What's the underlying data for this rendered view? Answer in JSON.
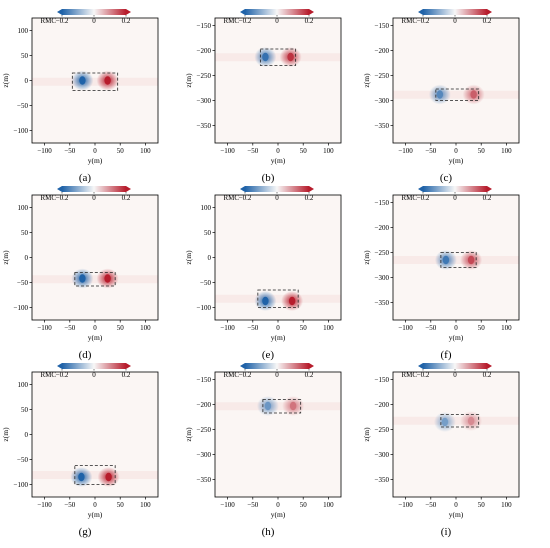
{
  "figure": {
    "colorbar": {
      "label": "RMC",
      "ticks": [
        -0.2,
        0,
        0.2
      ],
      "tick_labels": [
        "−0.2",
        "0",
        "0.2"
      ],
      "colormap": "RdBu_r",
      "extend": "both",
      "neg_color": "#1f62a8",
      "mid_color": "#f7f7f7",
      "pos_color": "#b71c2c"
    }
  },
  "chart_data": [
    {
      "type": "heatmap",
      "caption": "(a)",
      "xlabel": "y(m)",
      "ylabel": "z(m)",
      "xlim": [
        -125,
        125
      ],
      "ylim": [
        -125,
        125
      ],
      "xticks": [
        -100,
        -50,
        0,
        50,
        100
      ],
      "yticks": [
        100,
        50,
        0,
        -50,
        -100
      ],
      "box": {
        "y": [
          -45,
          45
        ],
        "z": [
          -20,
          15
        ]
      },
      "extrema": [
        {
          "y": -25,
          "z": 0,
          "value": -0.2
        },
        {
          "y": 25,
          "z": 0,
          "value": 0.2
        }
      ]
    },
    {
      "type": "heatmap",
      "caption": "(b)",
      "xlabel": "y(m)",
      "ylabel": "z(m)",
      "xlim": [
        -125,
        125
      ],
      "ylim": [
        -385,
        -135
      ],
      "xticks": [
        -100,
        -50,
        0,
        50,
        100
      ],
      "yticks": [
        -150,
        -200,
        -250,
        -300,
        -350
      ],
      "box": {
        "y": [
          -35,
          35
        ],
        "z": [
          -230,
          -197
        ]
      },
      "extrema": [
        {
          "y": -25,
          "z": -213,
          "value": -0.18
        },
        {
          "y": 25,
          "z": -213,
          "value": 0.18
        }
      ]
    },
    {
      "type": "heatmap",
      "caption": "(c)",
      "xlabel": "y(m)",
      "ylabel": "z(m)",
      "xlim": [
        -125,
        125
      ],
      "ylim": [
        -385,
        -135
      ],
      "xticks": [
        -100,
        -50,
        0,
        50,
        100
      ],
      "yticks": [
        -150,
        -200,
        -250,
        -300,
        -350
      ],
      "box": {
        "y": [
          -40,
          45
        ],
        "z": [
          -300,
          -277
        ]
      },
      "extrema": [
        {
          "y": -32,
          "z": -288,
          "value": -0.15
        },
        {
          "y": 35,
          "z": -288,
          "value": 0.14
        }
      ]
    },
    {
      "type": "heatmap",
      "caption": "(d)",
      "xlabel": "y(m)",
      "ylabel": "z(m)",
      "xlim": [
        -125,
        125
      ],
      "ylim": [
        -125,
        125
      ],
      "xticks": [
        -100,
        -50,
        0,
        50,
        100
      ],
      "yticks": [
        100,
        50,
        0,
        -50,
        -100
      ],
      "box": {
        "y": [
          -40,
          40
        ],
        "z": [
          -57,
          -30
        ]
      },
      "extrema": [
        {
          "y": -25,
          "z": -42,
          "value": -0.2
        },
        {
          "y": 25,
          "z": -42,
          "value": 0.2
        }
      ]
    },
    {
      "type": "heatmap",
      "caption": "(e)",
      "xlabel": "y(m)",
      "ylabel": "z(m)",
      "xlim": [
        -125,
        125
      ],
      "ylim": [
        -125,
        125
      ],
      "xticks": [
        -100,
        -50,
        0,
        50,
        100
      ],
      "yticks": [
        100,
        50,
        0,
        -50,
        -100
      ],
      "box": {
        "y": [
          -40,
          40
        ],
        "z": [
          -100,
          -65
        ]
      },
      "extrema": [
        {
          "y": -25,
          "z": -87,
          "value": -0.2
        },
        {
          "y": 28,
          "z": -87,
          "value": 0.2
        }
      ]
    },
    {
      "type": "heatmap",
      "caption": "(f)",
      "xlabel": "y(m)",
      "ylabel": "z(m)",
      "xlim": [
        -125,
        125
      ],
      "ylim": [
        -385,
        -135
      ],
      "xticks": [
        -100,
        -50,
        0,
        50,
        100
      ],
      "yticks": [
        -150,
        -200,
        -250,
        -300,
        -350
      ],
      "box": {
        "y": [
          -30,
          40
        ],
        "z": [
          -280,
          -250
        ]
      },
      "extrema": [
        {
          "y": -20,
          "z": -265,
          "value": -0.17
        },
        {
          "y": 30,
          "z": -265,
          "value": 0.16
        }
      ]
    },
    {
      "type": "heatmap",
      "caption": "(g)",
      "xlabel": "y(m)",
      "ylabel": "z(m)",
      "xlim": [
        -125,
        125
      ],
      "ylim": [
        -125,
        125
      ],
      "xticks": [
        -100,
        -50,
        0,
        50,
        100
      ],
      "yticks": [
        100,
        50,
        0,
        -50,
        -100
      ],
      "box": {
        "y": [
          -40,
          40
        ],
        "z": [
          -100,
          -62
        ]
      },
      "extrema": [
        {
          "y": -27,
          "z": -85,
          "value": -0.2
        },
        {
          "y": 27,
          "z": -85,
          "value": 0.2
        }
      ]
    },
    {
      "type": "heatmap",
      "caption": "(h)",
      "xlabel": "y(m)",
      "ylabel": "z(m)",
      "xlim": [
        -125,
        125
      ],
      "ylim": [
        -385,
        -135
      ],
      "xticks": [
        -100,
        -50,
        0,
        50,
        100
      ],
      "yticks": [
        -150,
        -200,
        -250,
        -300,
        -350
      ],
      "box": {
        "y": [
          -30,
          45
        ],
        "z": [
          -217,
          -190
        ]
      },
      "extrema": [
        {
          "y": -20,
          "z": -203,
          "value": -0.13
        },
        {
          "y": 30,
          "z": -203,
          "value": 0.12
        }
      ]
    },
    {
      "type": "heatmap",
      "caption": "(i)",
      "xlabel": "y(m)",
      "ylabel": "z(m)",
      "xlim": [
        -125,
        125
      ],
      "ylim": [
        -385,
        -135
      ],
      "xticks": [
        -100,
        -50,
        0,
        50,
        100
      ],
      "yticks": [
        -150,
        -200,
        -250,
        -300,
        -350
      ],
      "box": {
        "y": [
          -30,
          45
        ],
        "z": [
          -245,
          -220
        ]
      },
      "extrema": [
        {
          "y": -22,
          "z": -235,
          "value": -0.12
        },
        {
          "y": 30,
          "z": -233,
          "value": 0.1
        }
      ]
    }
  ]
}
